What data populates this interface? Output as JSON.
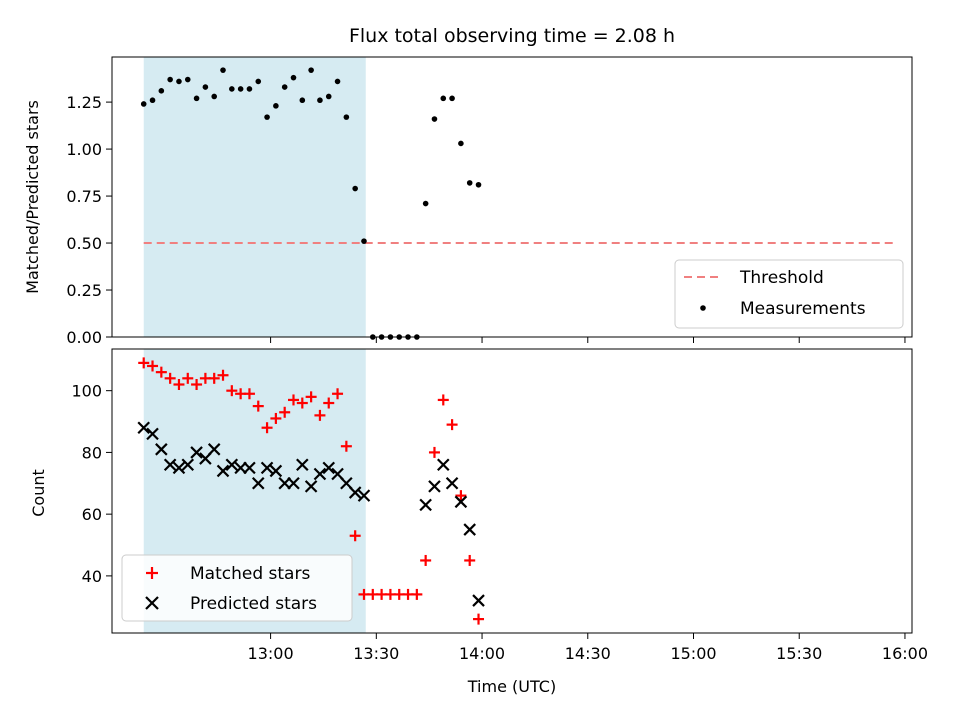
{
  "chart_data": [
    {
      "type": "scatter",
      "title": "Flux total observing time = 2.08 h",
      "xlabel": "",
      "ylabel": "Matched/Predicted stars",
      "ylim": [
        0,
        1.49
      ],
      "yticks": [
        "0.00",
        "0.25",
        "0.50",
        "0.75",
        "1.00",
        "1.25"
      ],
      "xlim_minutes": [
        735,
        962
      ],
      "xtick_minutes": [
        780,
        810,
        840,
        870,
        900,
        930,
        960
      ],
      "highlight_range_minutes": [
        744,
        807
      ],
      "threshold": {
        "name": "Threshold",
        "value": 0.5,
        "x_range_minutes": [
          744,
          957
        ],
        "color": "#f08080"
      },
      "legend": {
        "position": "bottom-right",
        "entries": [
          "Threshold",
          "Measurements"
        ]
      },
      "series": [
        {
          "name": "Measurements",
          "color": "#000000",
          "marker": "dot",
          "x_minutes": [
            744.0,
            746.5,
            749.0,
            751.5,
            754.0,
            756.5,
            759.0,
            761.5,
            764.0,
            766.5,
            769.0,
            771.5,
            774.0,
            776.5,
            779.0,
            781.5,
            784.0,
            786.5,
            789.0,
            791.5,
            794.0,
            796.5,
            799.0,
            801.5,
            804.0,
            806.5,
            809.0,
            811.5,
            814.0,
            816.5,
            819.0,
            821.5,
            824.0,
            826.5,
            829.0,
            831.5,
            834.0,
            836.5,
            839.0
          ],
          "values": [
            1.24,
            1.26,
            1.31,
            1.37,
            1.36,
            1.37,
            1.27,
            1.33,
            1.28,
            1.42,
            1.32,
            1.32,
            1.32,
            1.36,
            1.17,
            1.23,
            1.33,
            1.38,
            1.26,
            1.42,
            1.26,
            1.28,
            1.36,
            1.17,
            0.79,
            0.51,
            0.0,
            0.0,
            0.0,
            0.0,
            0.0,
            0.0,
            0.71,
            1.16,
            1.27,
            1.27,
            1.03,
            0.82,
            0.81
          ]
        }
      ]
    },
    {
      "type": "scatter",
      "title": "",
      "xlabel": "Time (UTC)",
      "ylabel": "Count",
      "ylim": [
        21.5,
        113.5
      ],
      "yticks": [
        "40",
        "60",
        "80",
        "100"
      ],
      "xtick_labels": [
        "13:00",
        "13:30",
        "14:00",
        "14:30",
        "15:00",
        "15:30",
        "16:00"
      ],
      "xtick_minutes": [
        780,
        810,
        840,
        870,
        900,
        930,
        960
      ],
      "xlim_minutes": [
        735,
        962
      ],
      "highlight_range_minutes": [
        744,
        807
      ],
      "legend": {
        "position": "bottom-left",
        "entries": [
          "Matched stars",
          "Predicted stars"
        ]
      },
      "series": [
        {
          "name": "Matched stars",
          "color": "#ff0000",
          "marker": "plus",
          "x_minutes": [
            744.0,
            746.5,
            749.0,
            751.5,
            754.0,
            756.5,
            759.0,
            761.5,
            764.0,
            766.5,
            769.0,
            771.5,
            774.0,
            776.5,
            779.0,
            781.5,
            784.0,
            786.5,
            789.0,
            791.5,
            794.0,
            796.5,
            799.0,
            801.5,
            804.0,
            806.5,
            809.0,
            811.5,
            814.0,
            816.5,
            819.0,
            821.5,
            824.0,
            826.5,
            829.0,
            831.5,
            834.0,
            836.5,
            839.0
          ],
          "values": [
            109,
            108,
            106,
            104,
            102,
            104,
            102,
            104,
            104,
            105,
            100,
            99,
            99,
            95,
            88,
            91,
            93,
            97,
            96,
            98,
            92,
            96,
            99,
            82,
            53,
            34,
            34,
            34,
            34,
            34,
            34,
            34,
            45,
            80,
            97,
            89,
            66,
            45,
            26
          ]
        },
        {
          "name": "Predicted stars",
          "color": "#000000",
          "marker": "x",
          "x_minutes": [
            744.0,
            746.5,
            749.0,
            751.5,
            754.0,
            756.5,
            759.0,
            761.5,
            764.0,
            766.5,
            769.0,
            771.5,
            774.0,
            776.5,
            779.0,
            781.5,
            784.0,
            786.5,
            789.0,
            791.5,
            794.0,
            796.5,
            799.0,
            801.5,
            804.0,
            806.5,
            824.0,
            826.5,
            829.0,
            831.5,
            834.0,
            836.5,
            839.0
          ],
          "values": [
            88,
            86,
            81,
            76,
            75,
            76,
            80,
            78,
            81,
            74,
            76,
            75,
            75,
            70,
            75,
            74,
            70,
            70,
            76,
            69,
            73,
            75,
            73,
            70,
            67,
            66,
            63,
            69,
            76,
            70,
            64,
            55,
            32
          ]
        }
      ]
    }
  ]
}
